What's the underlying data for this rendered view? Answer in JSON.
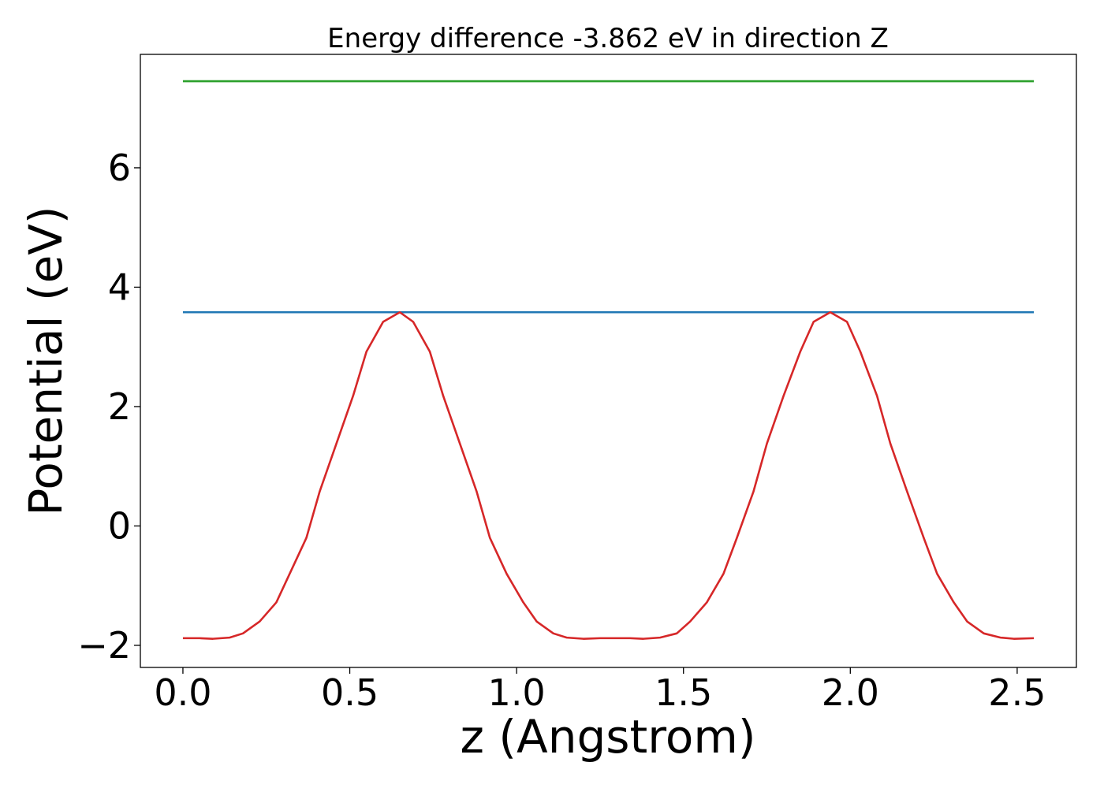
{
  "chart_data": {
    "type": "line",
    "title": "Energy difference -3.862 eV in direction Z",
    "xlabel": "z (Angstrom)",
    "ylabel": "Potential (eV)",
    "xlim": [
      -0.1275,
      2.6775
    ],
    "ylim": [
      -2.37,
      7.9
    ],
    "xticks": [
      {
        "value": 0.0,
        "label": "0.0"
      },
      {
        "value": 0.5,
        "label": "0.5"
      },
      {
        "value": 1.0,
        "label": "1.0"
      },
      {
        "value": 1.5,
        "label": "1.5"
      },
      {
        "value": 2.0,
        "label": "2.0"
      },
      {
        "value": 2.5,
        "label": "2.5"
      }
    ],
    "yticks": [
      {
        "value": -2,
        "label": "−2"
      },
      {
        "value": 0,
        "label": "0"
      },
      {
        "value": 2,
        "label": "2"
      },
      {
        "value": 4,
        "label": "4"
      },
      {
        "value": 6,
        "label": "6"
      }
    ],
    "grid": false,
    "series": [
      {
        "color": "#2ca02c",
        "x": [
          0.0,
          2.55
        ],
        "y": [
          7.45,
          7.45
        ]
      },
      {
        "color": "#1f77b4",
        "x": [
          0.0,
          2.55
        ],
        "y": [
          3.58,
          3.58
        ]
      },
      {
        "color": "#d62728",
        "x": [
          0.0,
          0.05,
          0.09,
          0.14,
          0.18,
          0.23,
          0.28,
          0.32,
          0.37,
          0.41,
          0.46,
          0.51,
          0.55,
          0.6,
          0.65,
          0.69,
          0.74,
          0.78,
          0.83,
          0.88,
          0.92,
          0.97,
          1.02,
          1.06,
          1.11,
          1.15,
          1.2,
          1.25,
          1.29,
          1.34,
          1.38,
          1.43,
          1.48,
          1.52,
          1.57,
          1.62,
          1.66,
          1.71,
          1.75,
          1.8,
          1.85,
          1.89,
          1.94,
          1.99,
          2.03,
          2.08,
          2.12,
          2.17,
          2.22,
          2.26,
          2.31,
          2.35,
          2.4,
          2.45,
          2.49,
          2.55
        ],
        "y": [
          -1.88,
          -1.88,
          -1.89,
          -1.87,
          -1.8,
          -1.6,
          -1.28,
          -0.8,
          -0.2,
          0.58,
          1.38,
          2.18,
          2.92,
          3.42,
          3.58,
          3.42,
          2.92,
          2.18,
          1.38,
          0.58,
          -0.2,
          -0.8,
          -1.28,
          -1.6,
          -1.8,
          -1.87,
          -1.89,
          -1.88,
          -1.88,
          -1.88,
          -1.89,
          -1.87,
          -1.8,
          -1.6,
          -1.28,
          -0.8,
          -0.2,
          0.58,
          1.38,
          2.18,
          2.92,
          3.42,
          3.58,
          3.42,
          2.92,
          2.18,
          1.38,
          0.58,
          -0.2,
          -0.8,
          -1.28,
          -1.6,
          -1.8,
          -1.87,
          -1.89,
          -1.88
        ]
      }
    ]
  }
}
